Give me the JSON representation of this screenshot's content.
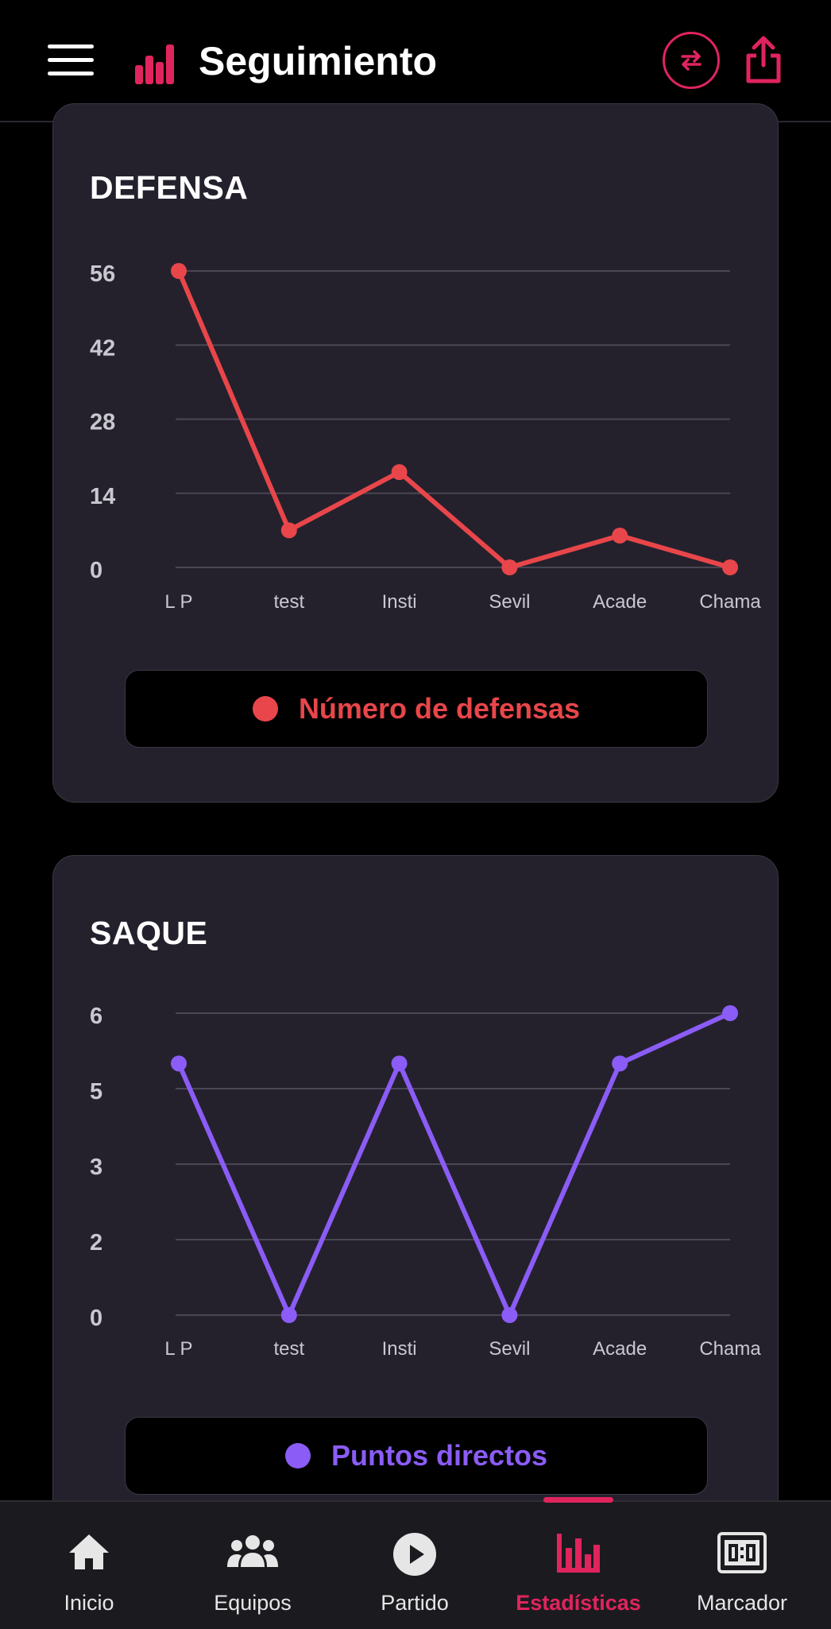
{
  "header": {
    "title": "Seguimiento",
    "accent": "#e0245e",
    "icons": [
      "menu-icon",
      "bar-chart-icon",
      "swap-icon",
      "share-icon"
    ]
  },
  "cards": [
    {
      "title": "DEFENSA",
      "legend": "Número de defensas",
      "color": "#e8464a"
    },
    {
      "title": "SAQUE",
      "legend": "Puntos directos",
      "color": "#8b5cf6"
    }
  ],
  "chart_data": [
    {
      "type": "line",
      "title": "DEFENSA",
      "categories": [
        "L P",
        "test",
        "Insti",
        "Sevil",
        "Acade",
        "Chama"
      ],
      "series": [
        {
          "name": "Número de defensas",
          "values": [
            56,
            7,
            18,
            0,
            6,
            0
          ]
        }
      ],
      "yticks": [
        "56",
        "42",
        "28",
        "14",
        "0"
      ],
      "ylim": [
        0,
        56
      ],
      "grid": true,
      "legend_position": "bottom",
      "color": "#e8464a"
    },
    {
      "type": "line",
      "title": "SAQUE",
      "categories": [
        "L P",
        "test",
        "Insti",
        "Sevil",
        "Acade",
        "Chama"
      ],
      "series": [
        {
          "name": "Puntos directos",
          "values": [
            5,
            0,
            5,
            0,
            5,
            6
          ]
        }
      ],
      "yticks": [
        "6",
        "5",
        "3",
        "2",
        "0"
      ],
      "ylim": [
        0,
        6
      ],
      "grid": true,
      "legend_position": "bottom",
      "color": "#8b5cf6"
    }
  ],
  "bottom_nav": {
    "items": [
      {
        "label": "Inicio",
        "icon": "home-icon",
        "active": false
      },
      {
        "label": "Equipos",
        "icon": "group-icon",
        "active": false
      },
      {
        "label": "Partido",
        "icon": "play-icon",
        "active": false
      },
      {
        "label": "Estadísticas",
        "icon": "bar-chart-icon",
        "active": true
      },
      {
        "label": "Marcador",
        "icon": "scoreboard-icon",
        "active": false
      }
    ]
  }
}
